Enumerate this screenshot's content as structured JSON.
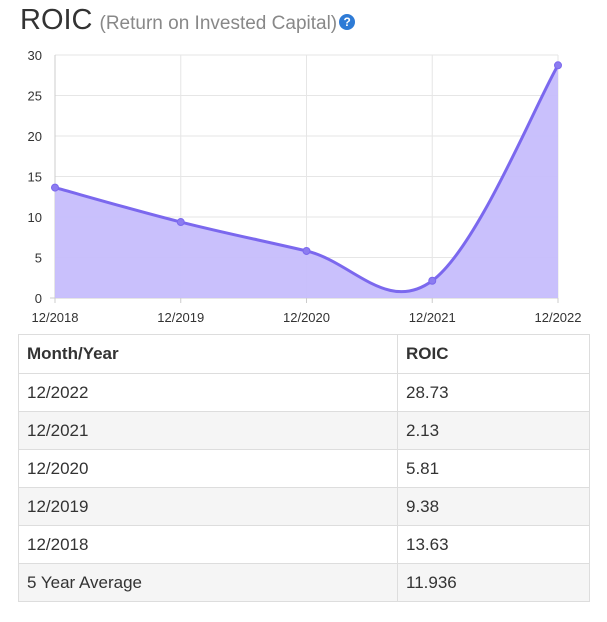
{
  "header": {
    "title": "ROIC",
    "subtitle": "(Return on Invested Capital)",
    "help_icon": "question-circle-icon",
    "help_glyph": "?"
  },
  "chart_data": {
    "type": "area",
    "categories": [
      "12/2018",
      "12/2019",
      "12/2020",
      "12/2021",
      "12/2022"
    ],
    "series": [
      {
        "values": [
          13.63,
          9.38,
          5.81,
          2.13,
          28.73
        ]
      }
    ],
    "ylim": [
      0,
      30
    ],
    "yticks": [
      0,
      5,
      10,
      15,
      20,
      25,
      30
    ],
    "grid": true,
    "line_color": "#7b68ee",
    "fill_color": "#c6bdfc",
    "point_color": "#8c7cf0"
  },
  "table": {
    "headers": [
      "Month/Year",
      "ROIC"
    ],
    "rows": [
      [
        "12/2022",
        "28.73"
      ],
      [
        "12/2021",
        "2.13"
      ],
      [
        "12/2020",
        "5.81"
      ],
      [
        "12/2019",
        "9.38"
      ],
      [
        "12/2018",
        "13.63"
      ],
      [
        "5 Year Average",
        "11.936"
      ]
    ]
  }
}
